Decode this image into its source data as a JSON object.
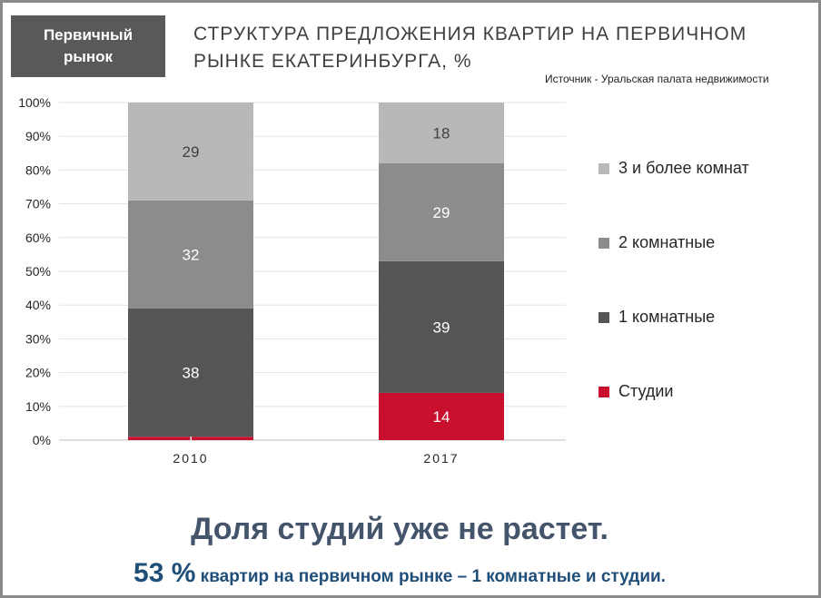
{
  "badge": {
    "line1": "Первичный",
    "line2": "рынок"
  },
  "title": "СТРУКТУРА ПРЕДЛОЖЕНИЯ КВАРТИР НА ПЕРВИЧНОМ РЫНКЕ ЕКАТЕРИНБУРГА, %",
  "source": "Источник - Уральская палата недвижимости",
  "headline": "Доля студий уже не растет.",
  "subline": {
    "big": "53 %",
    "rest": " квартир на первичном рынке – 1 комнатные и студии."
  },
  "chart_data": {
    "type": "bar",
    "stacked": true,
    "categories": [
      "2010",
      "2017"
    ],
    "series": [
      {
        "name": "Студии",
        "values": [
          1,
          14
        ],
        "color": "#c8102e",
        "label_color": "#ffffff"
      },
      {
        "name": "1 комнатные",
        "values": [
          38,
          39
        ],
        "color": "#555555",
        "label_color": "#ffffff"
      },
      {
        "name": "2 комнатные",
        "values": [
          32,
          29
        ],
        "color": "#8c8c8c",
        "label_color": "#ffffff"
      },
      {
        "name": "3 и более комнат",
        "values": [
          29,
          18
        ],
        "color": "#b8b8b8",
        "label_color": "#404040"
      }
    ],
    "data_labels": [
      [
        "1",
        "14"
      ],
      [
        "38",
        "39"
      ],
      [
        "32",
        "29"
      ],
      [
        "29",
        "18"
      ]
    ],
    "ylim": [
      0,
      100
    ],
    "yticks": [
      0,
      10,
      20,
      30,
      40,
      50,
      60,
      70,
      80,
      90,
      100
    ],
    "ytick_labels": [
      "0%",
      "10%",
      "20%",
      "30%",
      "40%",
      "50%",
      "60%",
      "70%",
      "80%",
      "90%",
      "100%"
    ],
    "grid": true,
    "legend_position": "right",
    "xlabel": "",
    "ylabel": ""
  }
}
